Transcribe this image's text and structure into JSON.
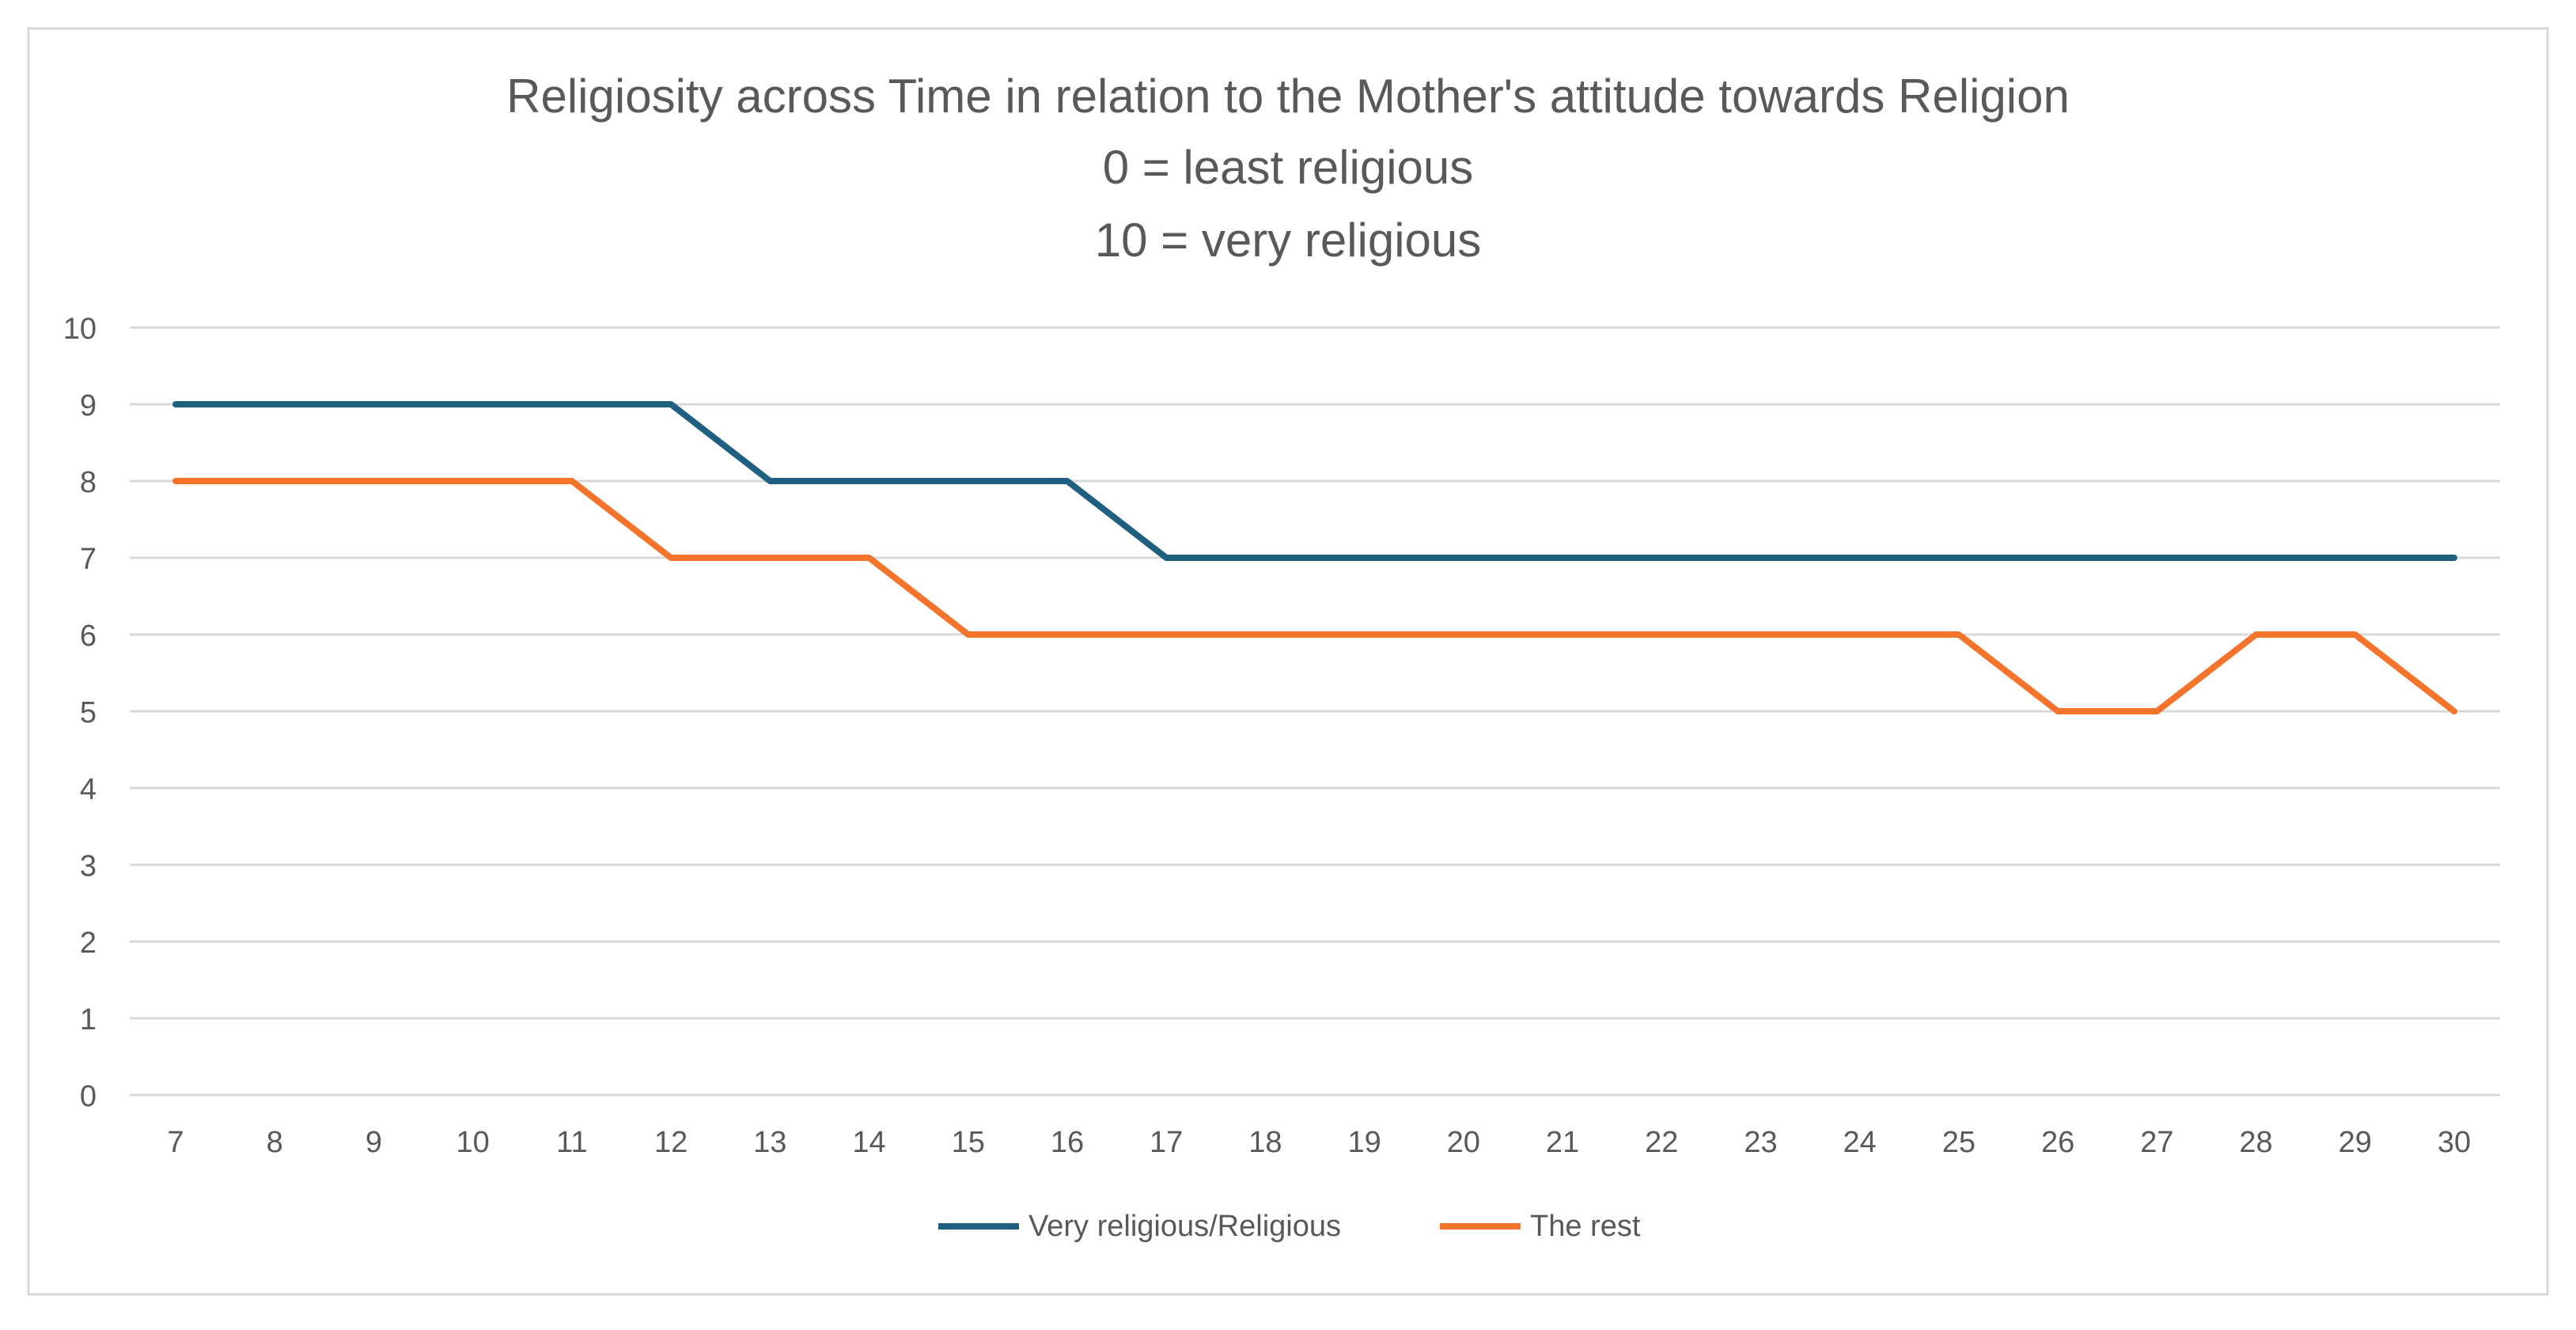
{
  "chart_data": {
    "type": "line",
    "title": "Religiosity across Time in relation to the Mother's attitude towards Religion",
    "subtitle_lines": [
      "0 = least religious",
      "10 = very religious"
    ],
    "xlabel": "",
    "ylabel": "",
    "x": [
      7,
      8,
      9,
      10,
      11,
      12,
      13,
      14,
      15,
      16,
      17,
      18,
      19,
      20,
      21,
      22,
      23,
      24,
      25,
      26,
      27,
      28,
      29,
      30
    ],
    "ylim": [
      0,
      10
    ],
    "yticks": [
      0,
      1,
      2,
      3,
      4,
      5,
      6,
      7,
      8,
      9,
      10
    ],
    "grid": "horizontal",
    "legend": "bottom-center",
    "series": [
      {
        "name": "Very religious/Religious",
        "color": "#1f5f7f",
        "values": [
          9,
          9,
          9,
          9,
          9,
          9,
          8,
          8,
          8,
          8,
          7,
          7,
          7,
          7,
          7,
          7,
          7,
          7,
          7,
          7,
          7,
          7,
          7,
          7
        ]
      },
      {
        "name": "The rest",
        "color": "#f4742c",
        "values": [
          8,
          8,
          8,
          8,
          8,
          7,
          7,
          7,
          6,
          6,
          6,
          6,
          6,
          6,
          6,
          6,
          6,
          6,
          6,
          5,
          5,
          6,
          6,
          5
        ]
      }
    ]
  }
}
